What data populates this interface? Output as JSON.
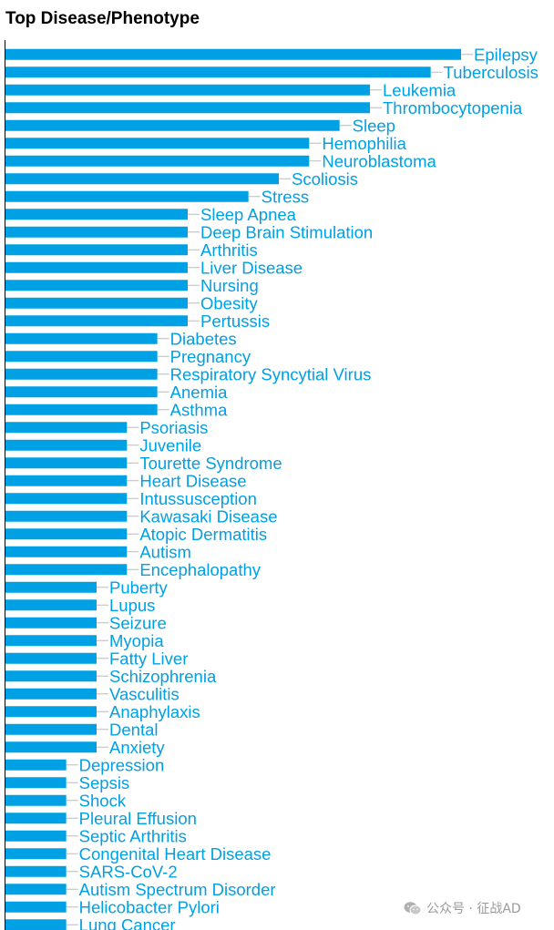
{
  "chart_data": {
    "type": "bar",
    "orientation": "horizontal",
    "title": "Top Disease/Phenotype",
    "categories": [
      "Epilepsy",
      "Tuberculosis",
      "Leukemia",
      "Thrombocytopenia",
      "Sleep",
      "Hemophilia",
      "Neuroblastoma",
      "Scoliosis",
      "Stress",
      "Sleep Apnea",
      "Deep Brain Stimulation",
      "Arthritis",
      "Liver Disease",
      "Nursing",
      "Obesity",
      "Pertussis",
      "Diabetes",
      "Pregnancy",
      "Respiratory Syncytial Virus",
      "Anemia",
      "Asthma",
      "Psoriasis",
      "Juvenile",
      "Tourette Syndrome",
      "Heart Disease",
      "Intussusception",
      "Kawasaki Disease",
      "Atopic Dermatitis",
      "Autism",
      "Encephalopathy",
      "Puberty",
      "Lupus",
      "Seizure",
      "Myopia",
      "Fatty Liver",
      "Schizophrenia",
      "Vasculitis",
      "Anaphylaxis",
      "Dental",
      "Anxiety",
      "Depression",
      "Sepsis",
      "Shock",
      "Pleural Effusion",
      "Septic Arthritis",
      "Congenital Heart Disease",
      "SARS-CoV-2",
      "Autism Spectrum Disorder",
      "Helicobacter Pylori",
      "Lung Cancer"
    ],
    "values": [
      15,
      14,
      12,
      12,
      11,
      10,
      10,
      9,
      8,
      6,
      6,
      6,
      6,
      6,
      6,
      6,
      5,
      5,
      5,
      5,
      5,
      4,
      4,
      4,
      4,
      4,
      4,
      4,
      4,
      4,
      3,
      3,
      3,
      3,
      3,
      3,
      3,
      3,
      3,
      3,
      2,
      2,
      2,
      2,
      2,
      2,
      2,
      2,
      2,
      2
    ],
    "xlim": [
      0,
      15
    ],
    "grid": false,
    "legend": "none",
    "colors": {
      "bar": "#00a0e4",
      "label": "#00a0e4",
      "leader": "#bbbbbb",
      "axis": "#000000"
    }
  },
  "watermark": {
    "text": "公众号 · 征战AD",
    "icon": "wechat-icon"
  }
}
